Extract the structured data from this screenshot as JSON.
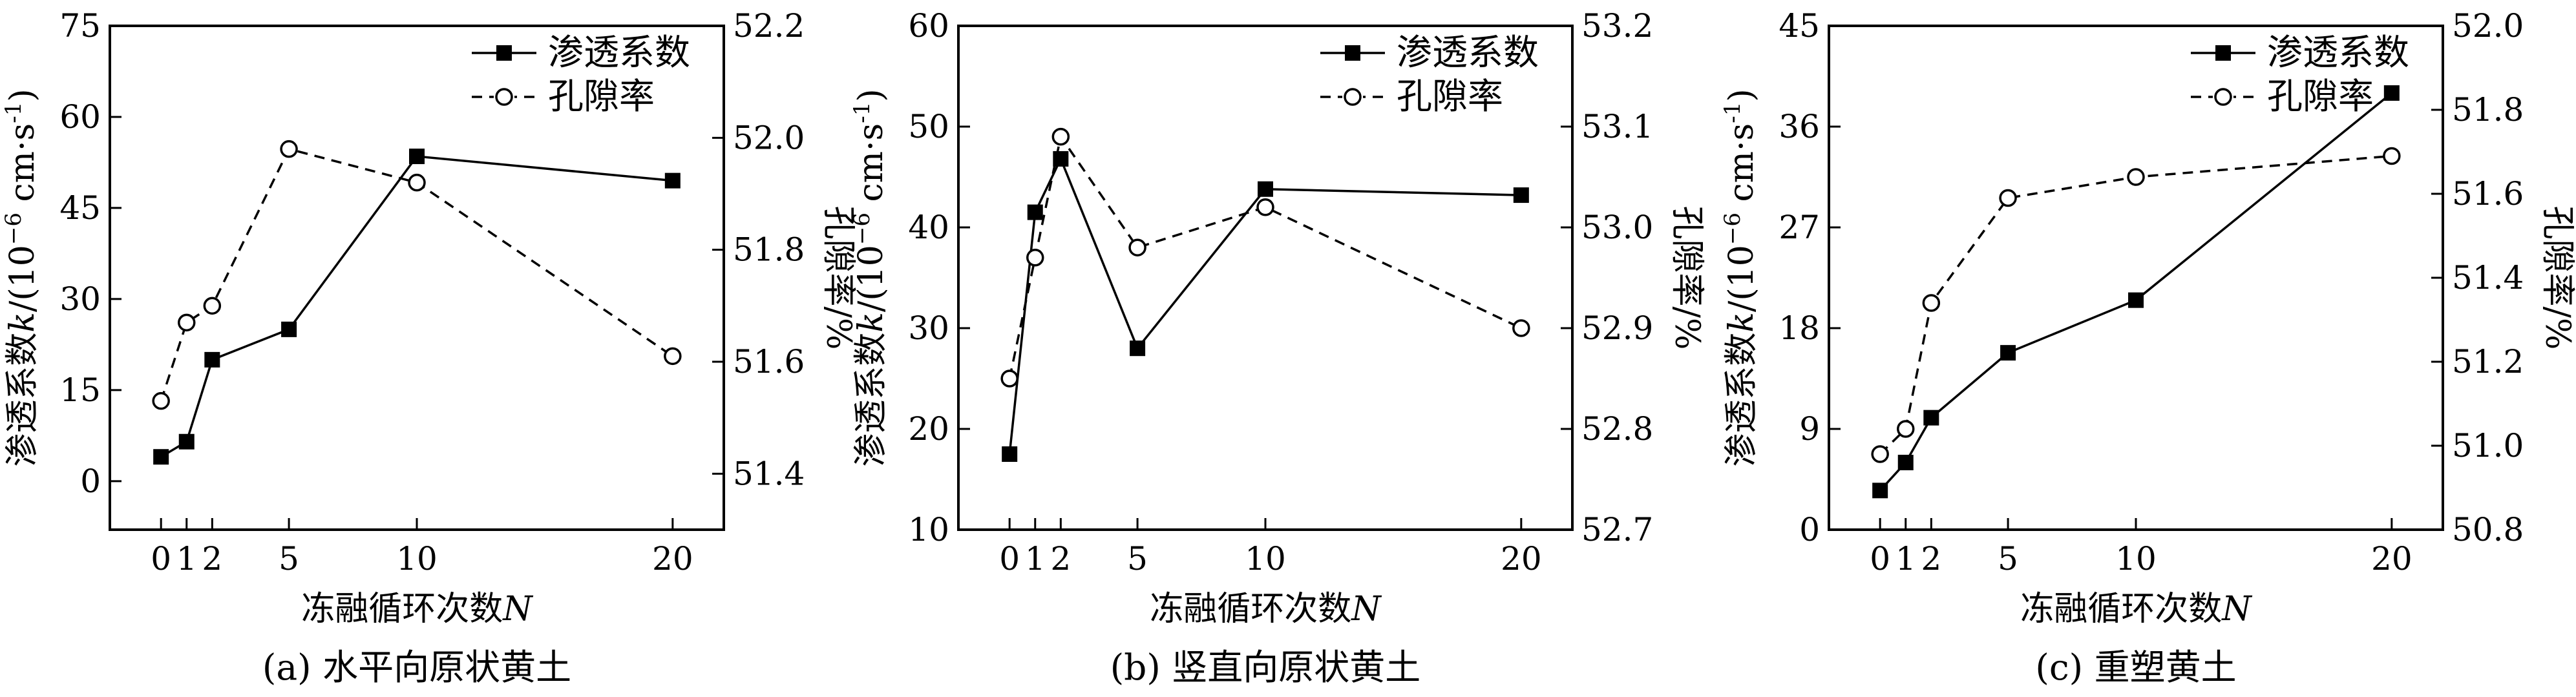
{
  "figure": {
    "panels": [
      {
        "caption": "(a) 水平向原状黄土",
        "legend": {
          "permeability": "渗透系数",
          "porosity": "孔隙率"
        },
        "axes": {
          "x_title_prefix": "冻融循环次数",
          "x_title_var": "N",
          "y_left_title_prefix": "渗透系数",
          "y_left_title_var": "k",
          "y_left_title_unit": "/(10",
          "y_left_title_exp": "−6",
          "y_left_title_unit2": " cm·s",
          "y_left_title_exp2": "-1",
          "y_left_title_close": ")",
          "y_right_title": "孔隙率/%"
        }
      },
      {
        "caption": "(b) 竖直向原状黄土",
        "legend": {
          "permeability": "渗透系数",
          "porosity": "孔隙率"
        },
        "axes": {
          "x_title_prefix": "冻融循环次数",
          "x_title_var": "N",
          "y_left_title_prefix": "渗透系数",
          "y_left_title_var": "k",
          "y_left_title_unit": "/(10",
          "y_left_title_exp": "−6",
          "y_left_title_unit2": " cm·s",
          "y_left_title_exp2": "-1",
          "y_left_title_close": ")",
          "y_right_title": "孔隙率/%"
        }
      },
      {
        "caption": "(c) 重塑黄土",
        "legend": {
          "permeability": "渗透系数",
          "porosity": "孔隙率"
        },
        "axes": {
          "x_title_prefix": "冻融循环次数",
          "x_title_var": "N",
          "y_left_title_prefix": "渗透系数",
          "y_left_title_var": "k",
          "y_left_title_unit": "/(10",
          "y_left_title_exp": "−6",
          "y_left_title_unit2": " cm·s",
          "y_left_title_exp2": "-1",
          "y_left_title_close": ")",
          "y_right_title": "孔隙率/%"
        }
      }
    ]
  },
  "chart_data": [
    {
      "type": "line",
      "x": [
        0,
        1,
        2,
        5,
        10,
        20
      ],
      "x_ticks": [
        0,
        1,
        2,
        5,
        10,
        20
      ],
      "xlabel": "冻融循环次数N",
      "xlim": [
        -2,
        22
      ],
      "y_left": {
        "label": "渗透系数k/(10−6 cm·s-1)",
        "lim": [
          -8,
          75
        ],
        "ticks": [
          0,
          15,
          30,
          45,
          60,
          75
        ]
      },
      "y_right": {
        "label": "孔隙率/%",
        "lim": [
          51.3,
          52.2
        ],
        "ticks": [
          51.4,
          51.6,
          51.8,
          52.0,
          52.2
        ]
      },
      "series": [
        {
          "name": "渗透系数",
          "axis": "left",
          "marker": "filled-square",
          "line": "solid",
          "values": [
            4.0,
            6.5,
            20.0,
            25.0,
            53.5,
            49.5
          ]
        },
        {
          "name": "孔隙率",
          "axis": "right",
          "marker": "open-circle",
          "line": "dashed",
          "values": [
            51.53,
            51.67,
            51.7,
            51.98,
            51.92,
            51.61
          ]
        }
      ],
      "legend": "top-right"
    },
    {
      "type": "line",
      "x": [
        0,
        1,
        2,
        5,
        10,
        20
      ],
      "x_ticks": [
        0,
        1,
        2,
        5,
        10,
        20
      ],
      "xlabel": "冻融循环次数N",
      "xlim": [
        -2,
        22
      ],
      "y_left": {
        "label": "渗透系数k/(10−6 cm·s-1)",
        "lim": [
          10,
          60
        ],
        "ticks": [
          10,
          20,
          30,
          40,
          50,
          60
        ]
      },
      "y_right": {
        "label": "孔隙率/%",
        "lim": [
          52.7,
          53.2
        ],
        "ticks": [
          52.7,
          52.8,
          52.9,
          53.0,
          53.1,
          53.2
        ]
      },
      "series": [
        {
          "name": "渗透系数",
          "axis": "left",
          "marker": "filled-square",
          "line": "solid",
          "values": [
            17.5,
            41.5,
            46.8,
            28.0,
            43.8,
            43.2
          ]
        },
        {
          "name": "孔隙率",
          "axis": "right",
          "marker": "open-circle",
          "line": "dashed",
          "values": [
            52.85,
            52.97,
            53.09,
            52.98,
            53.02,
            52.9
          ]
        }
      ],
      "legend": "top-right"
    },
    {
      "type": "line",
      "x": [
        0,
        1,
        2,
        5,
        10,
        20
      ],
      "x_ticks": [
        0,
        1,
        2,
        5,
        10,
        20
      ],
      "xlabel": "冻融循环次数N",
      "xlim": [
        -2,
        22
      ],
      "y_left": {
        "label": "渗透系数k/(10−6 cm·s-1)",
        "lim": [
          0,
          45
        ],
        "ticks": [
          0,
          9,
          18,
          27,
          36,
          45
        ]
      },
      "y_right": {
        "label": "孔隙率/%",
        "lim": [
          50.8,
          52.0
        ],
        "ticks": [
          50.8,
          51.0,
          51.2,
          51.4,
          51.6,
          51.8,
          52.0
        ]
      },
      "series": [
        {
          "name": "渗透系数",
          "axis": "left",
          "marker": "filled-square",
          "line": "solid",
          "values": [
            3.5,
            6.0,
            10.0,
            15.8,
            20.5,
            39.0
          ]
        },
        {
          "name": "孔隙率",
          "axis": "right",
          "marker": "open-circle",
          "line": "dashed",
          "values": [
            50.98,
            51.04,
            51.34,
            51.59,
            51.64,
            51.69
          ]
        }
      ],
      "legend": "top-right"
    }
  ]
}
